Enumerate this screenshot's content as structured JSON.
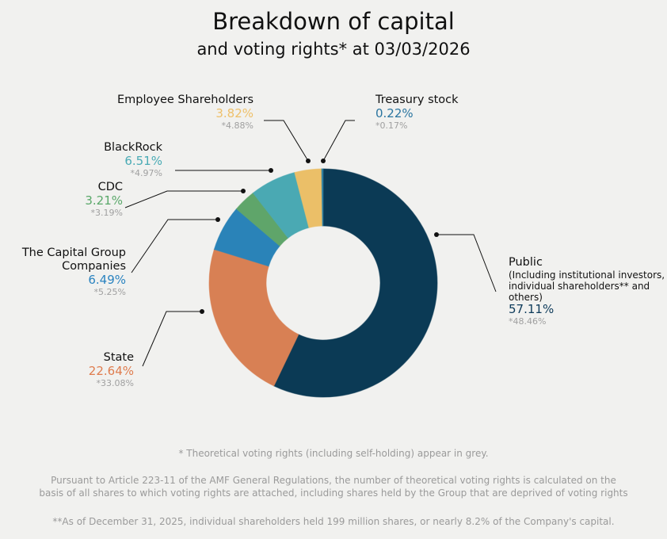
{
  "chart_data": {
    "type": "pie",
    "variant": "donut",
    "title": "Breakdown of capital",
    "subtitle": "and voting rights* at 03/03/2026",
    "slices": [
      {
        "name": "Public",
        "detail": "(Including institutional investors, individual shareholders** and others)",
        "value": 57.11,
        "label": "57.11%",
        "voting_rights": "*48.46%",
        "color": "#0b3a55",
        "label_color": "#0d3a5a"
      },
      {
        "name": "State",
        "value": 22.64,
        "label": "22.64%",
        "voting_rights": "*33.08%",
        "color": "#d88054",
        "label_color": "#df7c4e"
      },
      {
        "name": "The Capital Group Companies",
        "value": 6.49,
        "label": "6.49%",
        "voting_rights": "*5.25%",
        "color": "#2a83b8",
        "label_color": "#2a83c0"
      },
      {
        "name": "CDC",
        "value": 3.21,
        "label": "3.21%",
        "voting_rights": "*3.19%",
        "color": "#5fa56a",
        "label_color": "#5aa86a"
      },
      {
        "name": "BlackRock",
        "value": 6.51,
        "label": "6.51%",
        "voting_rights": "*4.97%",
        "color": "#4aa9b3",
        "label_color": "#4aabb5"
      },
      {
        "name": "Employee Shareholders",
        "value": 3.82,
        "label": "3.82%",
        "voting_rights": "*4.88%",
        "color": "#ebbf68",
        "label_color": "#eec06a"
      },
      {
        "name": "Treasury stock",
        "value": 0.22,
        "label": "0.22%",
        "voting_rights": "*0.17%",
        "color": "#2f7fa0",
        "label_color": "#2a75a0"
      }
    ]
  },
  "footnotes": {
    "note1": "* Theoretical voting rights (including self-holding) appear in grey.",
    "note2a": "Pursuant to Article 223-11 of the AMF General Regulations, the number of theoretical voting rights is calculated on the",
    "note2b": "basis of all shares to which voting rights are attached, including shares held by the Group that are deprived of voting rights",
    "note3": "**As of December 31, 2025, individual shareholders held 199 million shares, or nearly 8.2% of the Company's capital."
  }
}
